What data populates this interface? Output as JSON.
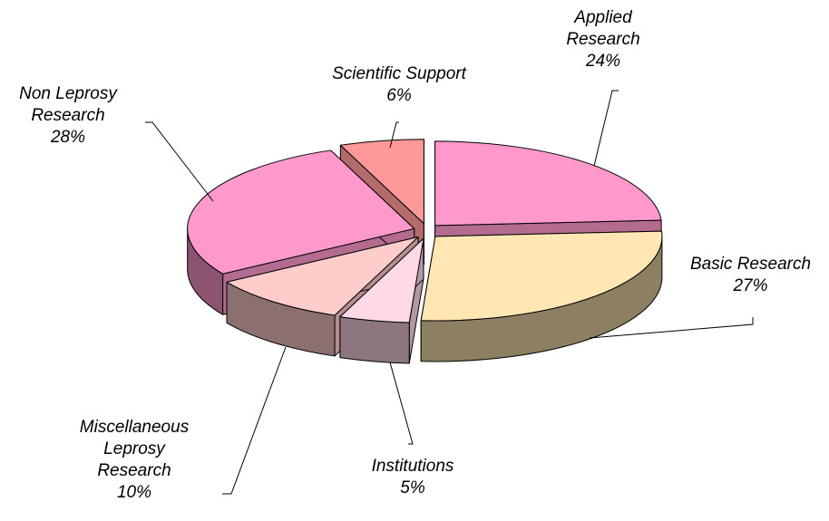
{
  "chart_data": {
    "type": "pie3d",
    "categories": [
      "Applied Research",
      "Basic Research",
      "Institutions",
      "Miscellaneous Leprosy Research",
      "Non Leprosy Research",
      "Scientific Support"
    ],
    "values": [
      24,
      27,
      5,
      10,
      28,
      6
    ],
    "value_labels": [
      "24%",
      "27%",
      "5%",
      "10%",
      "28%",
      "6%"
    ],
    "colors": [
      "#ff99cc",
      "#ffe6b3",
      "#ffd9e6",
      "#ffcccc",
      "#ff99cc",
      "#ff9999"
    ]
  }
}
